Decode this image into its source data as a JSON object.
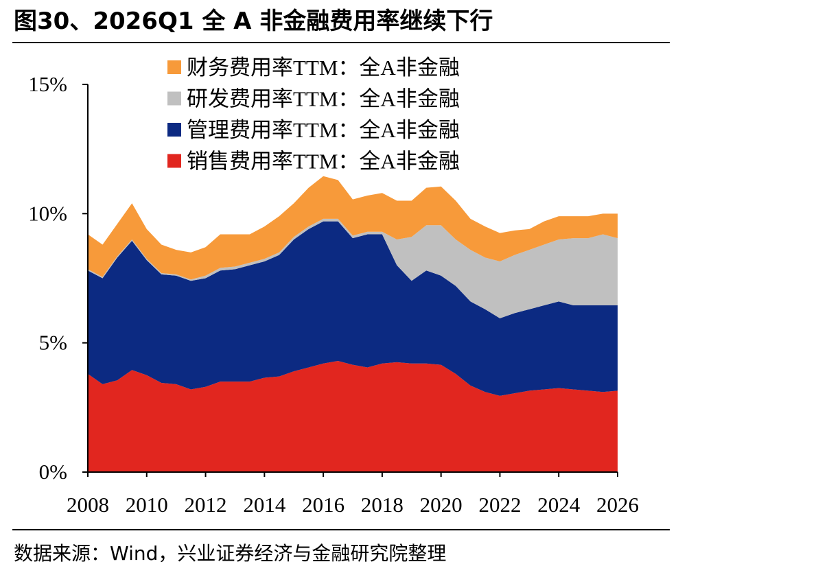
{
  "chart_data": {
    "type": "stacked-area",
    "title": "图30、2026Q1 全 A 非金融费用率继续下行",
    "source": "数据来源：Wind，兴业证券经济与金融研究院整理",
    "x": [
      2008,
      2008.5,
      2009,
      2009.5,
      2010,
      2010.5,
      2011,
      2011.5,
      2012,
      2012.5,
      2013,
      2013.5,
      2014,
      2014.5,
      2015,
      2015.5,
      2016,
      2016.5,
      2017,
      2017.5,
      2018,
      2018.5,
      2019,
      2019.5,
      2020,
      2020.5,
      2021,
      2021.5,
      2022,
      2022.5,
      2023,
      2023.5,
      2024,
      2024.5,
      2025,
      2025.5,
      2026
    ],
    "series": [
      {
        "name": "销售费用率TTM：全A非金融",
        "color": "#e1261f",
        "values": [
          3.8,
          3.4,
          3.55,
          3.95,
          3.75,
          3.45,
          3.4,
          3.2,
          3.3,
          3.5,
          3.5,
          3.5,
          3.65,
          3.7,
          3.9,
          4.05,
          4.2,
          4.3,
          4.15,
          4.05,
          4.2,
          4.25,
          4.2,
          4.2,
          4.15,
          3.8,
          3.35,
          3.1,
          2.95,
          3.05,
          3.15,
          3.2,
          3.25,
          3.2,
          3.15,
          3.1,
          3.15
        ]
      },
      {
        "name": "管理费用率TTM：全A非金融",
        "color": "#0c2a82",
        "values": [
          4.0,
          4.1,
          4.75,
          5.0,
          4.45,
          4.2,
          4.2,
          4.2,
          4.2,
          4.3,
          4.35,
          4.5,
          4.5,
          4.7,
          5.1,
          5.35,
          5.5,
          5.4,
          4.9,
          5.15,
          5.0,
          3.75,
          3.2,
          3.6,
          3.45,
          3.4,
          3.25,
          3.2,
          3.0,
          3.1,
          3.15,
          3.25,
          3.35,
          3.25,
          3.3,
          3.35,
          3.3
        ]
      },
      {
        "name": "研发费用率TTM：全A非金融",
        "color": "#c0c0c0",
        "values": [
          0.05,
          0.05,
          0.05,
          0.05,
          0.05,
          0.05,
          0.05,
          0.05,
          0.1,
          0.1,
          0.1,
          0.1,
          0.1,
          0.1,
          0.1,
          0.1,
          0.1,
          0.1,
          0.1,
          0.1,
          0.1,
          1.0,
          1.7,
          1.75,
          1.95,
          1.8,
          2.0,
          2.0,
          2.2,
          2.25,
          2.3,
          2.35,
          2.4,
          2.6,
          2.6,
          2.75,
          2.6
        ]
      },
      {
        "name": "财务费用率TTM：全A非金融",
        "color": "#f79a3a",
        "values": [
          1.35,
          1.25,
          1.25,
          1.4,
          1.15,
          1.1,
          0.95,
          1.05,
          1.1,
          1.3,
          1.25,
          1.1,
          1.25,
          1.4,
          1.3,
          1.5,
          1.65,
          1.5,
          1.4,
          1.4,
          1.5,
          1.5,
          1.4,
          1.45,
          1.5,
          1.5,
          1.2,
          1.2,
          1.1,
          0.95,
          0.8,
          0.9,
          0.9,
          0.85,
          0.85,
          0.8,
          0.95
        ]
      }
    ],
    "xlim": [
      2008,
      2026
    ],
    "xticks": [
      2008,
      2010,
      2012,
      2014,
      2016,
      2018,
      2020,
      2022,
      2024,
      2026
    ],
    "ylim": [
      0,
      15
    ],
    "yticks": [
      {
        "value": 0,
        "label": "0%"
      },
      {
        "value": 5,
        "label": "5%"
      },
      {
        "value": 10,
        "label": "10%"
      },
      {
        "value": 15,
        "label": "15%"
      }
    ]
  }
}
